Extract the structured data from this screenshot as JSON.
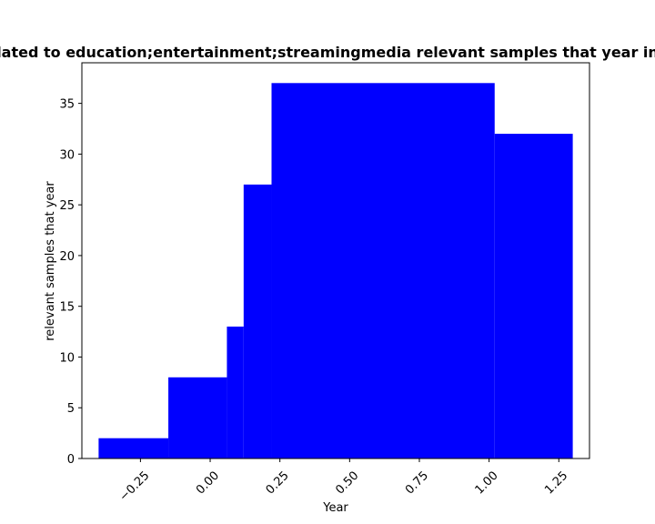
{
  "chart_data": {
    "type": "bar",
    "title": "lated to education;entertainment;streamingmedia relevant samples that year in",
    "xlabel": "Year",
    "ylabel": "relevant samples that year",
    "xlim": [
      -0.46,
      1.36
    ],
    "ylim": [
      0,
      39
    ],
    "x_ticks": [
      -0.25,
      0.0,
      0.25,
      0.5,
      0.75,
      1.0,
      1.25
    ],
    "x_tick_labels": [
      "−0.25",
      "0.00",
      "0.25",
      "0.50",
      "0.75",
      "1.00",
      "1.25"
    ],
    "y_ticks": [
      0,
      5,
      10,
      15,
      20,
      25,
      30,
      35
    ],
    "y_tick_labels": [
      "0",
      "5",
      "10",
      "15",
      "20",
      "25",
      "30",
      "35"
    ],
    "bars": [
      {
        "x0": -0.4,
        "x1": -0.15,
        "value": 2
      },
      {
        "x0": -0.15,
        "x1": 0.06,
        "value": 8
      },
      {
        "x0": 0.06,
        "x1": 0.12,
        "value": 13
      },
      {
        "x0": 0.12,
        "x1": 0.22,
        "value": 27
      },
      {
        "x0": 0.22,
        "x1": 1.02,
        "value": 37
      },
      {
        "x0": 1.02,
        "x1": 1.3,
        "value": 32
      }
    ],
    "bar_color": "#0000ff",
    "grid": false,
    "legend": false
  }
}
